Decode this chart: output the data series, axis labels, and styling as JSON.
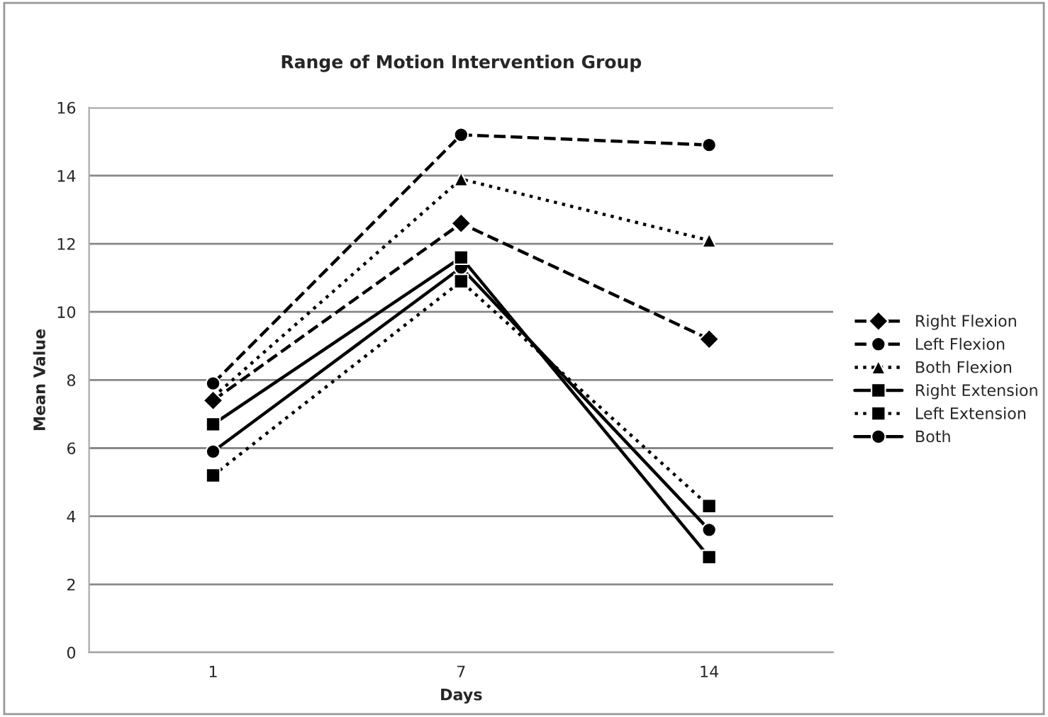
{
  "chart_data": {
    "type": "line",
    "title": "Range of Motion Intervention Group",
    "xlabel": "Days",
    "ylabel": "Mean Value",
    "categories": [
      "1",
      "7",
      "14"
    ],
    "series": [
      {
        "name": "Right Flexion",
        "color": "#000000",
        "values": [
          7.4,
          12.6,
          9.2
        ],
        "marker": "diamond",
        "line_style": "dashed"
      },
      {
        "name": "Left Flexion",
        "color": "#000000",
        "values": [
          7.9,
          15.2,
          14.9
        ],
        "marker": "circle",
        "line_style": "dashed"
      },
      {
        "name": "Both Flexion",
        "color": "#000000",
        "values": [
          7.5,
          13.9,
          12.1
        ],
        "marker": "triangle",
        "line_style": "dotted"
      },
      {
        "name": "Right Extension",
        "color": "#000000",
        "values": [
          6.7,
          11.6,
          2.8
        ],
        "marker": "square",
        "line_style": "solid"
      },
      {
        "name": "Left Extension",
        "color": "#000000",
        "values": [
          5.2,
          10.9,
          4.3
        ],
        "marker": "square",
        "line_style": "dotted"
      },
      {
        "name": "Both",
        "color": "#000000",
        "values": [
          5.9,
          11.3,
          3.6
        ],
        "marker": "circle",
        "line_style": "solid"
      }
    ],
    "ylim": [
      0,
      16
    ],
    "yticks": [
      0,
      2,
      4,
      6,
      8,
      10,
      12,
      14,
      16
    ],
    "grid": "y",
    "legend": "right"
  }
}
